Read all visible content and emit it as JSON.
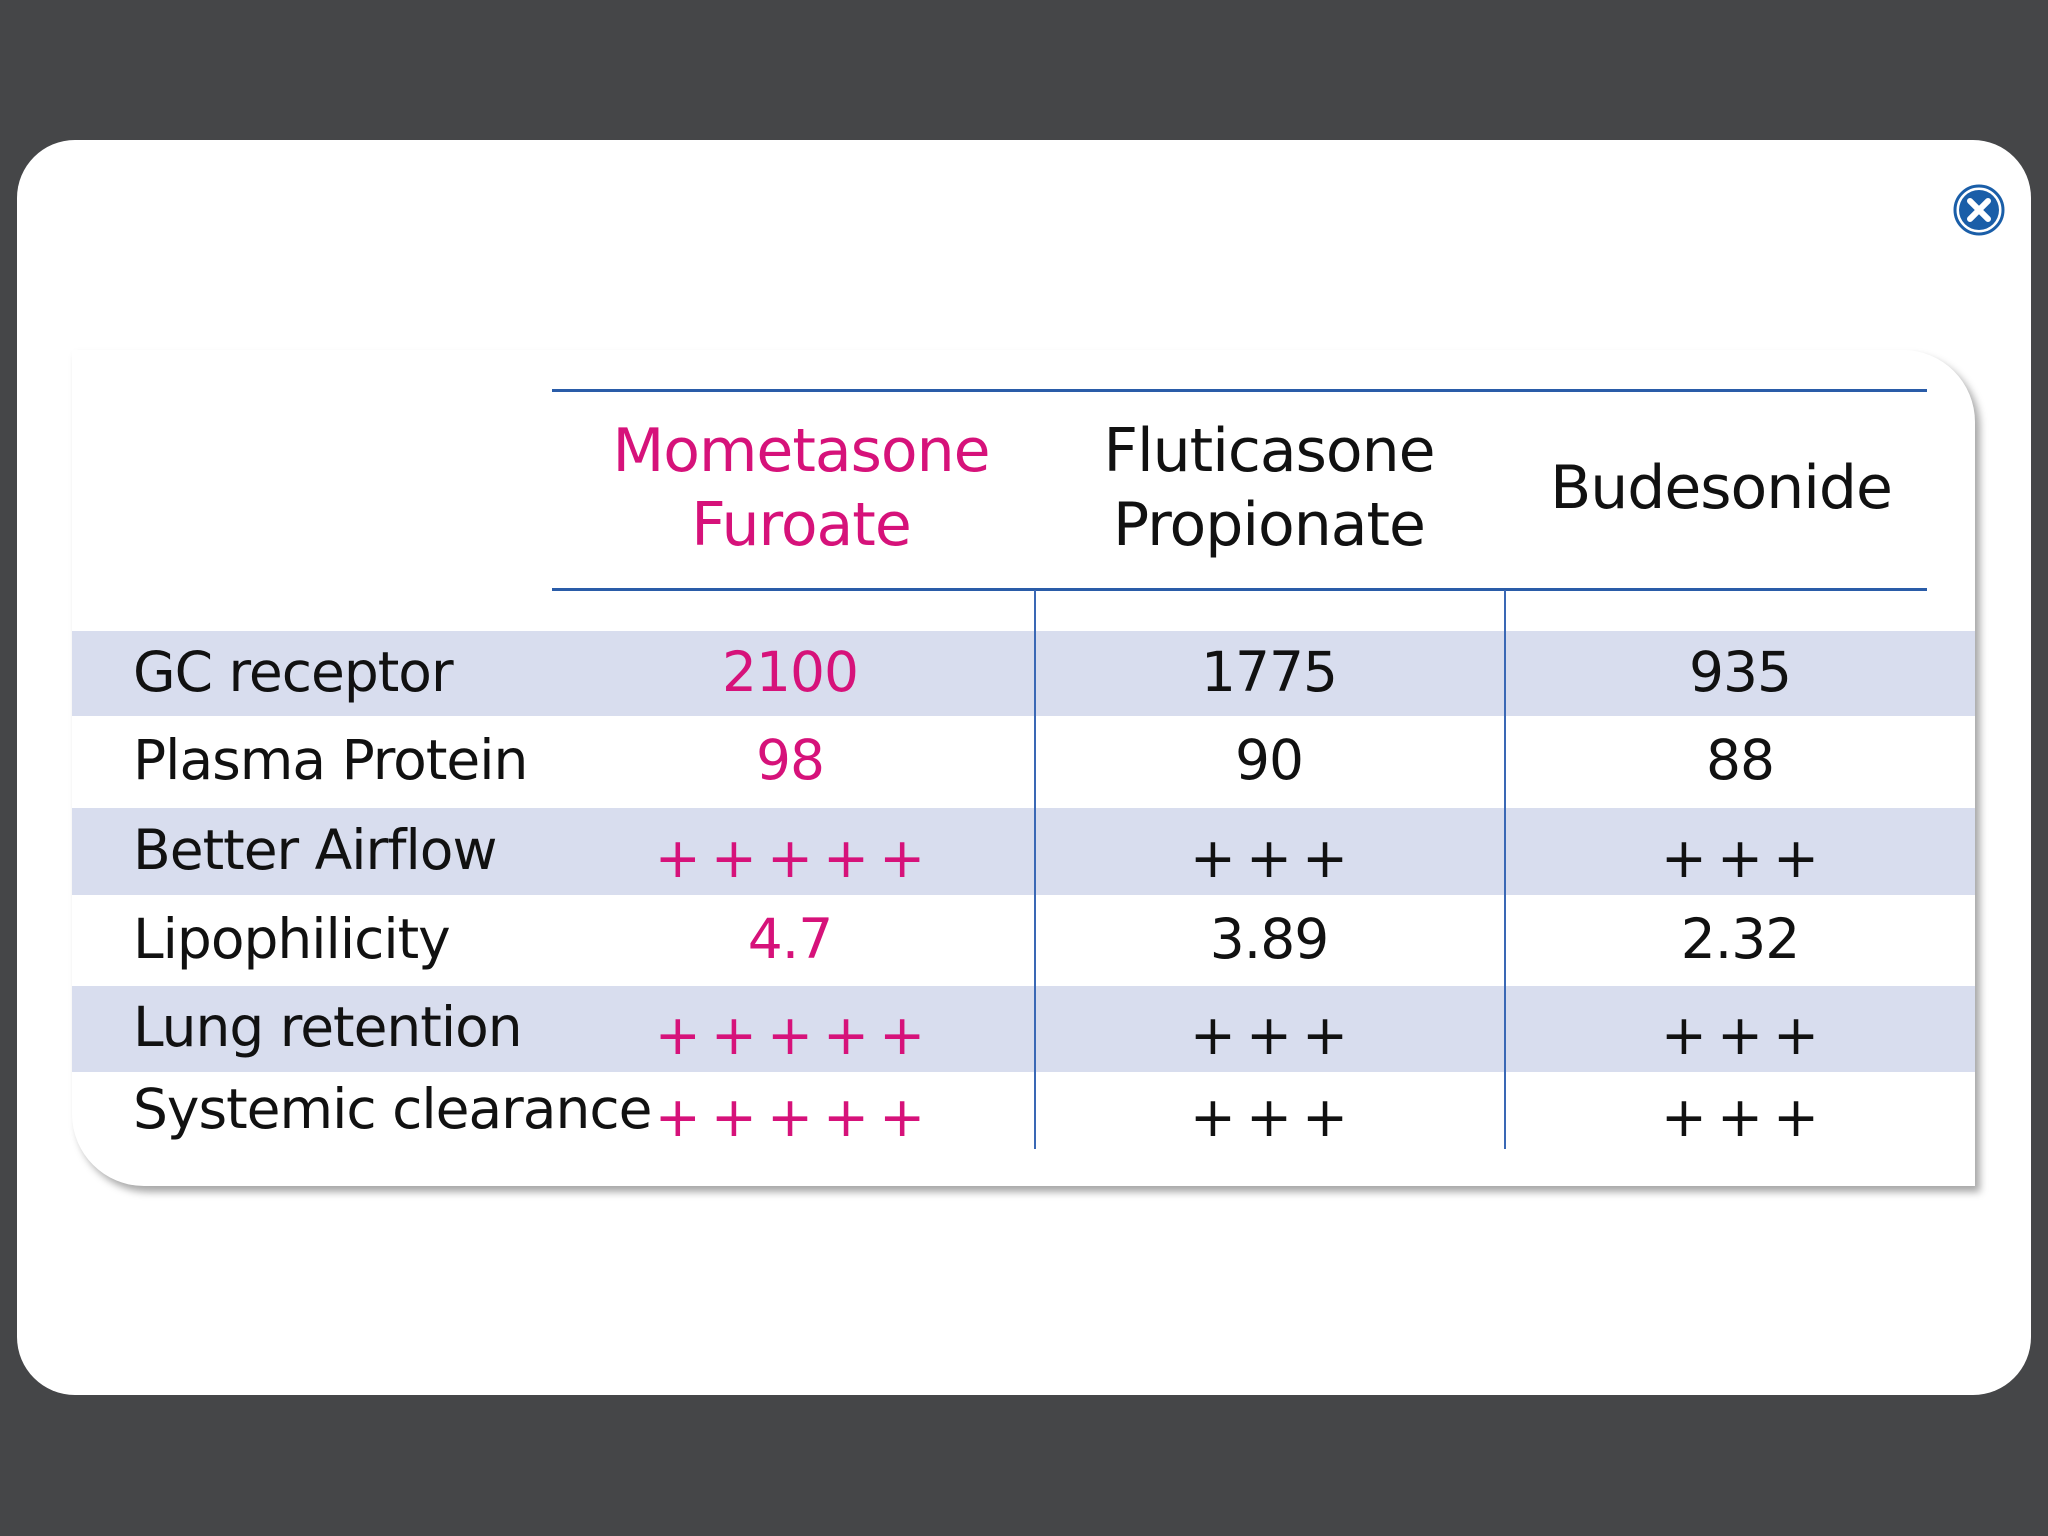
{
  "table": {
    "header": [
      "",
      "Mometasone\nFuroate",
      "Fluticasone\nPropionate",
      "Budesonide"
    ],
    "rows": [
      [
        "GC receptor",
        "2100",
        "1775",
        "935"
      ],
      [
        "Plasma Protein",
        "98",
        "90",
        "88"
      ],
      [
        "Better Airflow",
        "+++++",
        "+++",
        "+++"
      ],
      [
        "Lipophilicity",
        "4.7",
        "3.89",
        "2.32"
      ],
      [
        "Lung retention",
        "+++++",
        "+++",
        "+++"
      ],
      [
        "Systemic clearance",
        "+++++",
        "+++",
        "+++"
      ]
    ]
  }
}
